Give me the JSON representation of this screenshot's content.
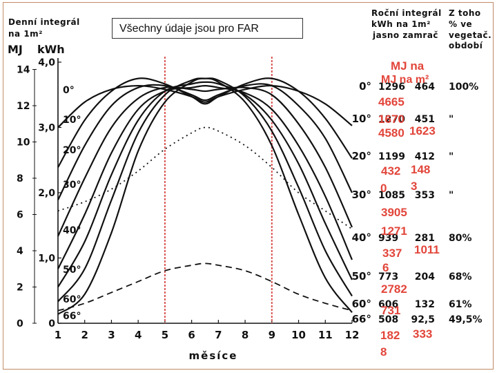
{
  "header": {
    "left_title_line1": "Denní integrál",
    "left_title_line2": "na 1m²",
    "unit_mj": "MJ",
    "unit_kwh": "kWh",
    "box_label": "Všechny údaje jsou pro FAR",
    "col_annual_line1": "Roční integrál",
    "col_annual_line2": "kWh na 1m²",
    "col_annual_line3": "jasno zamrač",
    "col_pct_line1": "Z toho",
    "col_pct_line2": "% ve",
    "col_pct_line3": "vegetač.",
    "col_pct_line4": "období"
  },
  "chart_data": {
    "type": "line",
    "xlabel": "měsíce",
    "x_ticks": [
      "1",
      "2",
      "3",
      "4",
      "5",
      "6",
      "7",
      "8",
      "9",
      "10",
      "11",
      "12"
    ],
    "xlim": [
      1,
      12
    ],
    "y_mj_ticks": [
      "0",
      "2",
      "4",
      "6",
      "8",
      "10",
      "12",
      "14"
    ],
    "ylim_mj": [
      0,
      14.4
    ],
    "y_kwh_ticks": [
      "0",
      "1,0",
      "2,0",
      "3,0",
      "4,0"
    ],
    "vertical_markers_month": [
      5,
      9
    ],
    "vertical_marker_color": "#d9534f",
    "series": [
      {
        "name": "0°",
        "style": "solid",
        "x": [
          1,
          2,
          3,
          4,
          5,
          6,
          6.5,
          7,
          8,
          9,
          10,
          11,
          12
        ],
        "y": [
          0.5,
          1.6,
          5.0,
          9.5,
          12.2,
          13.3,
          13.5,
          13.3,
          12.2,
          9.8,
          6.0,
          2.5,
          0.6
        ]
      },
      {
        "name": "10°",
        "style": "solid",
        "x": [
          1,
          2,
          3,
          4,
          5,
          6,
          6.5,
          7,
          8,
          9,
          10,
          11,
          12
        ],
        "y": [
          1.2,
          3.0,
          6.8,
          10.5,
          12.6,
          13.4,
          13.5,
          13.4,
          12.5,
          10.6,
          7.5,
          4.0,
          1.5
        ]
      },
      {
        "name": "20°",
        "style": "solid",
        "x": [
          1,
          2,
          3,
          4,
          5,
          6,
          6.5,
          7,
          8,
          9,
          10,
          11,
          12
        ],
        "y": [
          2.0,
          4.5,
          8.2,
          11.2,
          12.8,
          13.2,
          13.3,
          13.2,
          12.6,
          11.2,
          8.8,
          5.5,
          2.4
        ]
      },
      {
        "name": "30°",
        "style": "solid",
        "x": [
          1,
          2,
          3,
          4,
          5,
          6,
          6.5,
          7,
          8,
          9,
          10,
          11,
          12
        ],
        "y": [
          3.0,
          6.0,
          9.4,
          11.8,
          12.8,
          13.0,
          13.1,
          13.0,
          12.7,
          11.8,
          9.8,
          7.0,
          3.5
        ]
      },
      {
        "name": "40°",
        "style": "solid",
        "x": [
          1,
          2,
          3,
          4,
          5,
          6,
          6.5,
          7,
          8,
          9,
          10,
          11,
          12
        ],
        "y": [
          4.8,
          8.0,
          10.8,
          12.4,
          13.0,
          12.9,
          12.8,
          12.9,
          13.0,
          12.6,
          11.0,
          8.6,
          5.3
        ]
      },
      {
        "name": "50°",
        "style": "solid",
        "x": [
          1,
          2,
          3,
          4,
          5,
          6,
          6.5,
          7,
          8,
          9,
          10,
          11,
          12
        ],
        "y": [
          6.8,
          9.8,
          12.0,
          13.0,
          13.1,
          12.6,
          12.3,
          12.6,
          13.1,
          13.1,
          12.0,
          10.2,
          7.2
        ]
      },
      {
        "name": "60°",
        "style": "solid",
        "x": [
          1,
          2,
          3,
          4,
          5,
          6,
          6.5,
          7,
          8,
          9,
          10,
          11,
          12
        ],
        "y": [
          8.6,
          11.2,
          12.8,
          13.5,
          13.2,
          12.5,
          12.1,
          12.5,
          13.2,
          13.5,
          12.8,
          11.3,
          9.1
        ]
      },
      {
        "name": "66°",
        "style": "solid",
        "x": [
          1,
          2,
          3,
          4,
          5,
          6,
          6.5,
          7,
          8,
          9,
          10,
          11,
          12
        ],
        "y": [
          10.8,
          12.2,
          12.9,
          13.1,
          12.9,
          12.5,
          12.2,
          12.5,
          12.9,
          13.1,
          12.8,
          12.1,
          10.9
        ]
      },
      {
        "name": "",
        "style": "dotted",
        "x": [
          1,
          2,
          3,
          4,
          5,
          6,
          6.5,
          7,
          8,
          9,
          10,
          11,
          12
        ],
        "y": [
          6.2,
          6.7,
          7.4,
          8.4,
          9.6,
          10.5,
          10.8,
          10.6,
          9.8,
          8.6,
          7.2,
          6.2,
          5.2
        ]
      },
      {
        "name": "",
        "style": "dashed",
        "x": [
          1,
          2,
          3,
          4,
          5,
          6,
          6.5,
          7,
          8,
          9,
          10,
          11,
          12
        ],
        "y": [
          0.7,
          1.1,
          1.7,
          2.3,
          2.9,
          3.2,
          3.3,
          3.2,
          2.9,
          2.3,
          1.6,
          1.1,
          0.7
        ]
      }
    ],
    "curve_labels": [
      "0°",
      "10°",
      "20°",
      "30°",
      "40°",
      "50°",
      "60°",
      "66°"
    ],
    "table": {
      "angles": [
        "0°",
        "10°",
        "20°",
        "30°",
        "40°",
        "50°",
        "60°",
        "66°"
      ],
      "sunny": [
        "1296",
        "1270",
        "1199",
        "1085",
        "939",
        "773",
        "606",
        "508"
      ],
      "cloudy": [
        "464",
        "451",
        "412",
        "353",
        "281",
        "204",
        "132",
        "92,5"
      ],
      "percent": [
        "100%",
        "\"",
        "\"",
        "\"",
        "80%",
        "68%",
        "61%",
        "49,5%"
      ]
    }
  },
  "overlay": {
    "unit_label": "MJ na m²",
    "values": [
      "4665",
      "1670",
      "4580",
      "1623",
      "432",
      "148",
      "0",
      "3",
      "3905",
      "1271",
      "337",
      "1011",
      "6",
      "2782",
      "731",
      "182",
      "333",
      "8"
    ]
  }
}
